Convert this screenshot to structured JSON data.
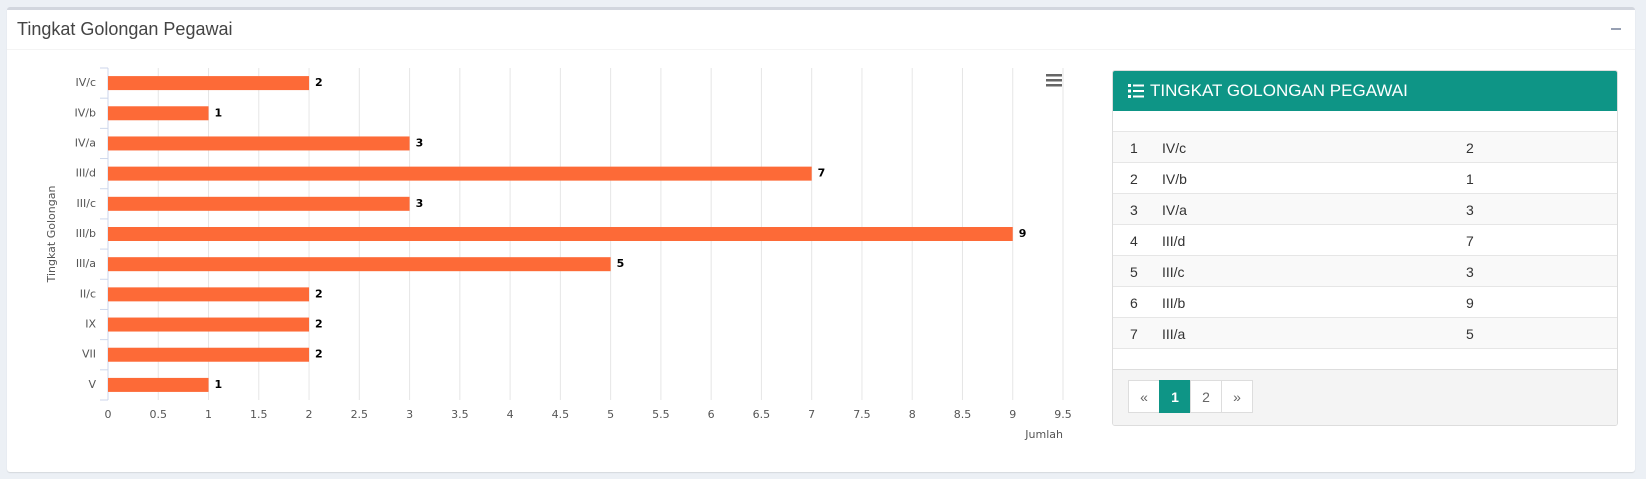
{
  "header": {
    "title": "Tingkat Golongan Pegawai"
  },
  "chart_data": {
    "type": "bar",
    "orientation": "horizontal",
    "x_label": "Jumlah",
    "y_label": "Tingkat Golongan",
    "categories": [
      "IV/c",
      "IV/b",
      "IV/a",
      "III/d",
      "III/c",
      "III/b",
      "III/a",
      "II/c",
      "IX",
      "VII",
      "V"
    ],
    "values": [
      2,
      1,
      3,
      7,
      3,
      9,
      5,
      2,
      2,
      2,
      1
    ],
    "color": "#fd6a37",
    "xlim": [
      0,
      9.5
    ],
    "xticks": [
      0,
      0.5,
      1,
      1.5,
      2,
      2.5,
      3,
      3.5,
      4,
      4.5,
      5,
      5.5,
      6,
      6.5,
      7,
      7.5,
      8,
      8.5,
      9,
      9.5
    ],
    "grid": true
  },
  "table": {
    "title": "TINGKAT GOLONGAN PEGAWAI",
    "rows": [
      [
        1,
        "IV/c",
        2
      ],
      [
        2,
        "IV/b",
        1
      ],
      [
        3,
        "IV/a",
        3
      ],
      [
        4,
        "III/d",
        7
      ],
      [
        5,
        "III/c",
        3
      ],
      [
        6,
        "III/b",
        9
      ],
      [
        7,
        "III/a",
        5
      ]
    ]
  },
  "pagination": {
    "pages": [
      "«",
      "1",
      "2",
      "»"
    ],
    "active": 1
  }
}
